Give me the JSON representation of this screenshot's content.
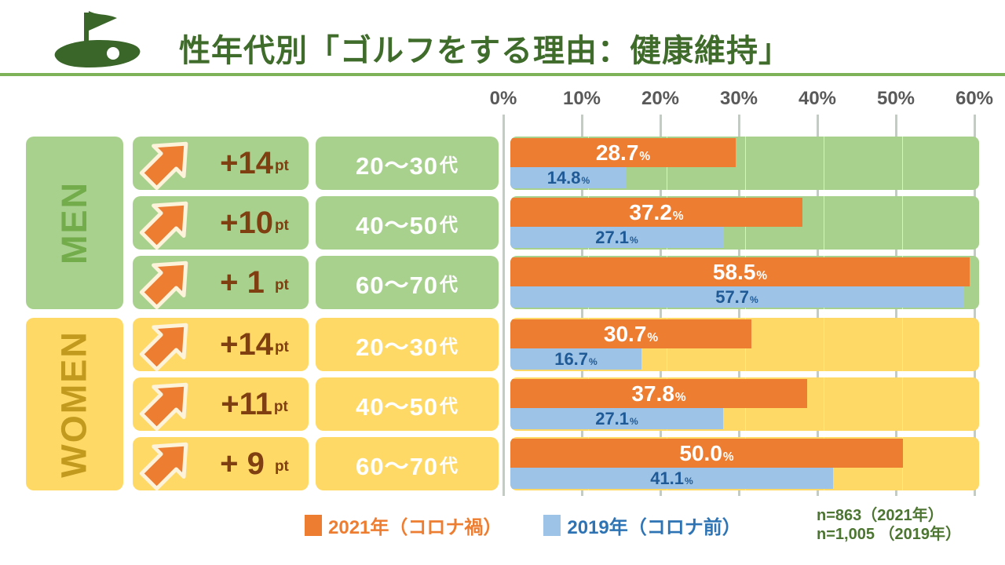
{
  "header": {
    "title": "性年代別「ゴルフをする理由：健康維持」"
  },
  "axis": {
    "ticks": [
      "0%",
      "10%",
      "20%",
      "30%",
      "40%",
      "50%",
      "60%"
    ]
  },
  "labels": {
    "pt_unit": "pt",
    "age_suffix": "代",
    "percent": "%"
  },
  "sections": [
    {
      "label": "MEN",
      "rows": [
        {
          "delta": "+14",
          "age": "20〜30",
          "v2021": "28.7",
          "v2019": "14.8"
        },
        {
          "delta": "+10",
          "age": "40〜50",
          "v2021": "37.2",
          "v2019": "27.1"
        },
        {
          "delta": "+ 1 ",
          "age": "60〜70",
          "v2021": "58.5",
          "v2019": "57.7"
        }
      ]
    },
    {
      "label": "WOMEN",
      "rows": [
        {
          "delta": "+14",
          "age": "20〜30",
          "v2021": "30.7",
          "v2019": "16.7"
        },
        {
          "delta": "+11",
          "age": "40〜50",
          "v2021": "37.8",
          "v2019": "27.1"
        },
        {
          "delta": "+ 9 ",
          "age": "60〜70",
          "v2021": "50.0",
          "v2019": "41.1"
        }
      ]
    }
  ],
  "legend": {
    "label_2021": "2021年（コロナ禍）",
    "label_2019": "2019年（コロナ前）"
  },
  "sample": {
    "line1": "n=863（2021年）",
    "line2": "n=1,005 （2019年）"
  },
  "colors": {
    "bar_2021": "#ed7d31",
    "bar_2019": "#9dc3e6",
    "men_panel": "#a9d18e",
    "women_panel": "#ffd966",
    "men_text": "#73ac4a",
    "women_text": "#c19a1e",
    "title_green": "#3f6b2b",
    "delta_brown": "#7f3f10",
    "axis_gray": "#595959",
    "note_green": "#4d7532",
    "blue_value_text": "#1f5a96"
  },
  "chart_data": {
    "type": "bar",
    "orientation": "horizontal",
    "title": "性年代別「ゴルフをする理由：健康維持」",
    "groups": [
      "MEN 20〜30代",
      "MEN 40〜50代",
      "MEN 60〜70代",
      "WOMEN 20〜30代",
      "WOMEN 40〜50代",
      "WOMEN 60〜70代"
    ],
    "series": [
      {
        "name": "2021年（コロナ禍）",
        "color": "#ed7d31",
        "values": [
          28.7,
          37.2,
          58.5,
          30.7,
          37.8,
          50.0
        ]
      },
      {
        "name": "2019年（コロナ前）",
        "color": "#9dc3e6",
        "values": [
          14.8,
          27.1,
          57.7,
          16.7,
          27.1,
          41.1
        ]
      }
    ],
    "deltas_pt": [
      "+14",
      "+10",
      "+1",
      "+14",
      "+11",
      "+9"
    ],
    "x_ticks": [
      "0%",
      "10%",
      "20%",
      "30%",
      "40%",
      "50%",
      "60%"
    ],
    "xlim": [
      0,
      60
    ],
    "grid": true,
    "legend_position": "bottom",
    "notes": [
      "n=863（2021年）",
      "n=1,005 （2019年）"
    ]
  }
}
